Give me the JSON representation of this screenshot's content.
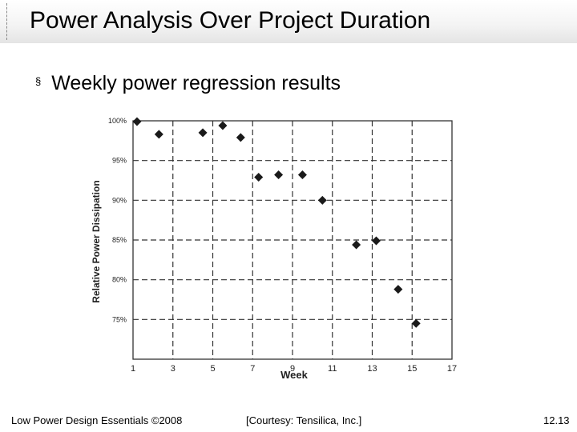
{
  "slide": {
    "title": "Power Analysis Over Project Duration",
    "bullet_mark": "§",
    "bullet": "Weekly power regression results"
  },
  "footer": {
    "left": "Low Power Design Essentials ©2008",
    "center": "[Courtesy: Tensilica, Inc.]",
    "page": "12.13"
  },
  "chart_data": {
    "type": "scatter",
    "xlabel": "Week",
    "ylabel": "Relative Power Dissipation",
    "xlim": [
      1,
      17
    ],
    "ylim": [
      70,
      100
    ],
    "x_ticks": [
      1,
      3,
      5,
      7,
      9,
      11,
      13,
      15,
      17
    ],
    "x_tick_labels": [
      "1",
      "3",
      "5",
      "7",
      "9",
      "11",
      "13",
      "15",
      "17"
    ],
    "y_ticks": [
      100,
      95,
      90,
      85,
      80,
      75
    ],
    "y_tick_labels": [
      "100%",
      "95%",
      "90%",
      "85%",
      "80%",
      "75%"
    ],
    "grid": true,
    "marker": "diamond",
    "marker_color": "#1a1a1a",
    "points": [
      {
        "x": 1.2,
        "y": 99.9
      },
      {
        "x": 2.3,
        "y": 98.3
      },
      {
        "x": 4.5,
        "y": 98.5
      },
      {
        "x": 5.5,
        "y": 99.4
      },
      {
        "x": 6.4,
        "y": 97.9
      },
      {
        "x": 7.3,
        "y": 92.9
      },
      {
        "x": 8.3,
        "y": 93.2
      },
      {
        "x": 9.5,
        "y": 93.2
      },
      {
        "x": 10.5,
        "y": 90.0
      },
      {
        "x": 12.2,
        "y": 84.4
      },
      {
        "x": 13.2,
        "y": 84.9
      },
      {
        "x": 14.3,
        "y": 78.8
      },
      {
        "x": 15.2,
        "y": 74.5
      }
    ]
  }
}
